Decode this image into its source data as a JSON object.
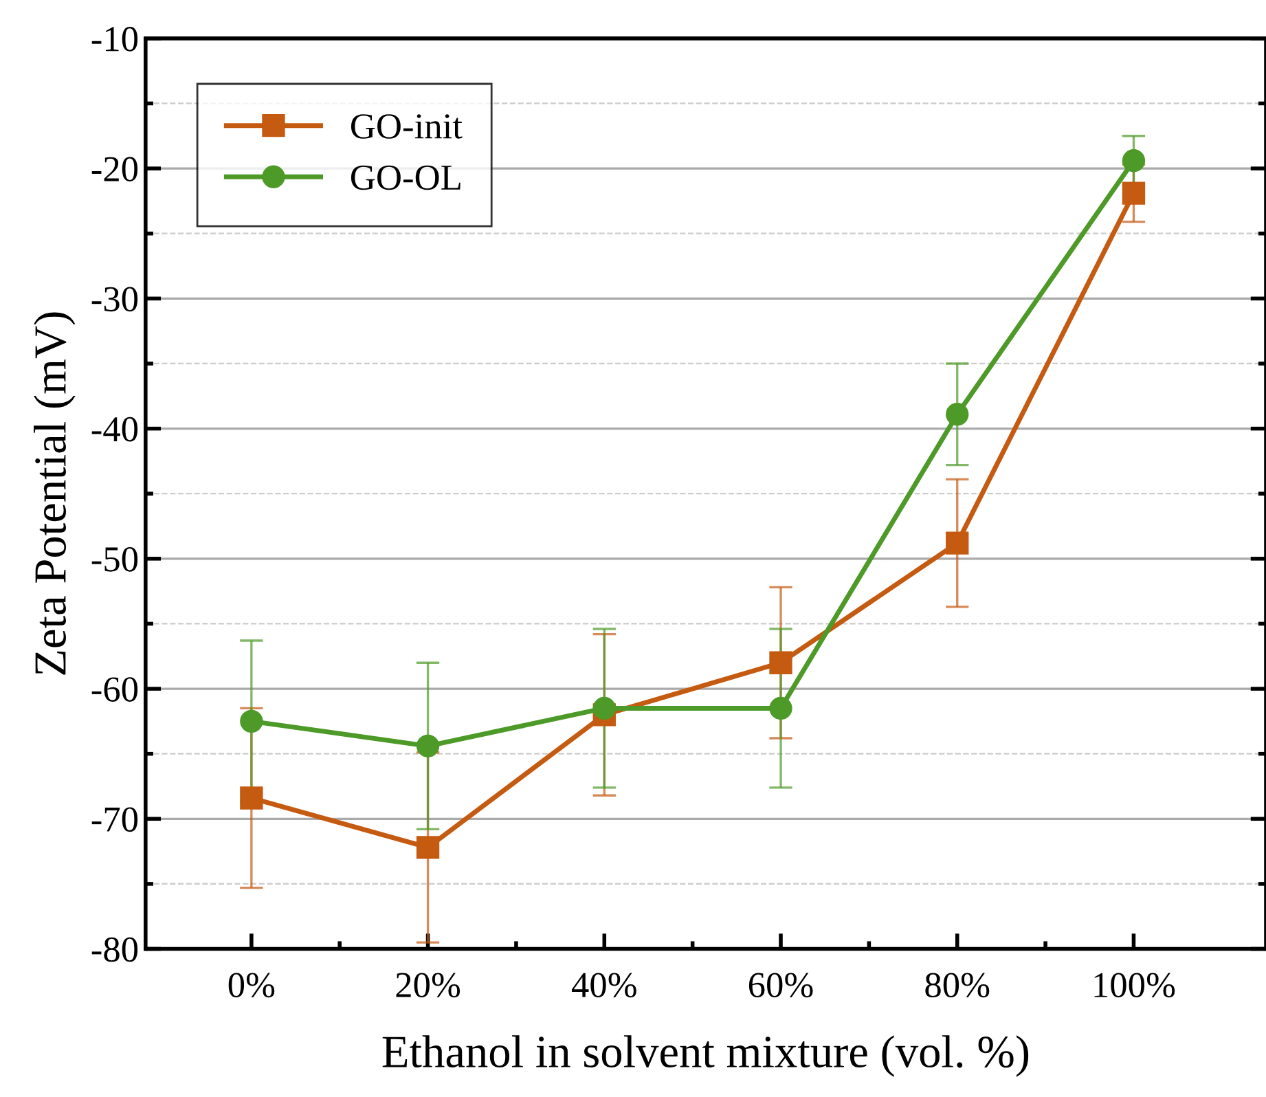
{
  "chart_data": {
    "type": "line",
    "xlabel": "Ethanol in solvent mixture (vol. %)",
    "ylabel": "Zeta Potential (mV)",
    "categories": [
      "0%",
      "20%",
      "40%",
      "60%",
      "80%",
      "100%"
    ],
    "series": [
      {
        "name": "GO-init",
        "color": "#c55a11",
        "marker": "square",
        "values": [
          -68.4,
          -72.2,
          -62.0,
          -58.0,
          -48.8,
          -21.9
        ],
        "errors": [
          6.9,
          7.3,
          6.2,
          5.8,
          4.9,
          2.2
        ]
      },
      {
        "name": "GO-OL",
        "color": "#4e9a28",
        "marker": "circle",
        "values": [
          -62.5,
          -64.4,
          -61.5,
          -61.5,
          -38.9,
          -19.4
        ],
        "errors": [
          6.2,
          6.4,
          6.1,
          6.1,
          3.9,
          1.9
        ]
      }
    ],
    "ylim": [
      -80,
      -10
    ],
    "yticks": [
      -80,
      -70,
      -60,
      -50,
      -40,
      -30,
      -20,
      -10
    ],
    "grid": "y",
    "legend": "top left",
    "line_style": "solid"
  }
}
